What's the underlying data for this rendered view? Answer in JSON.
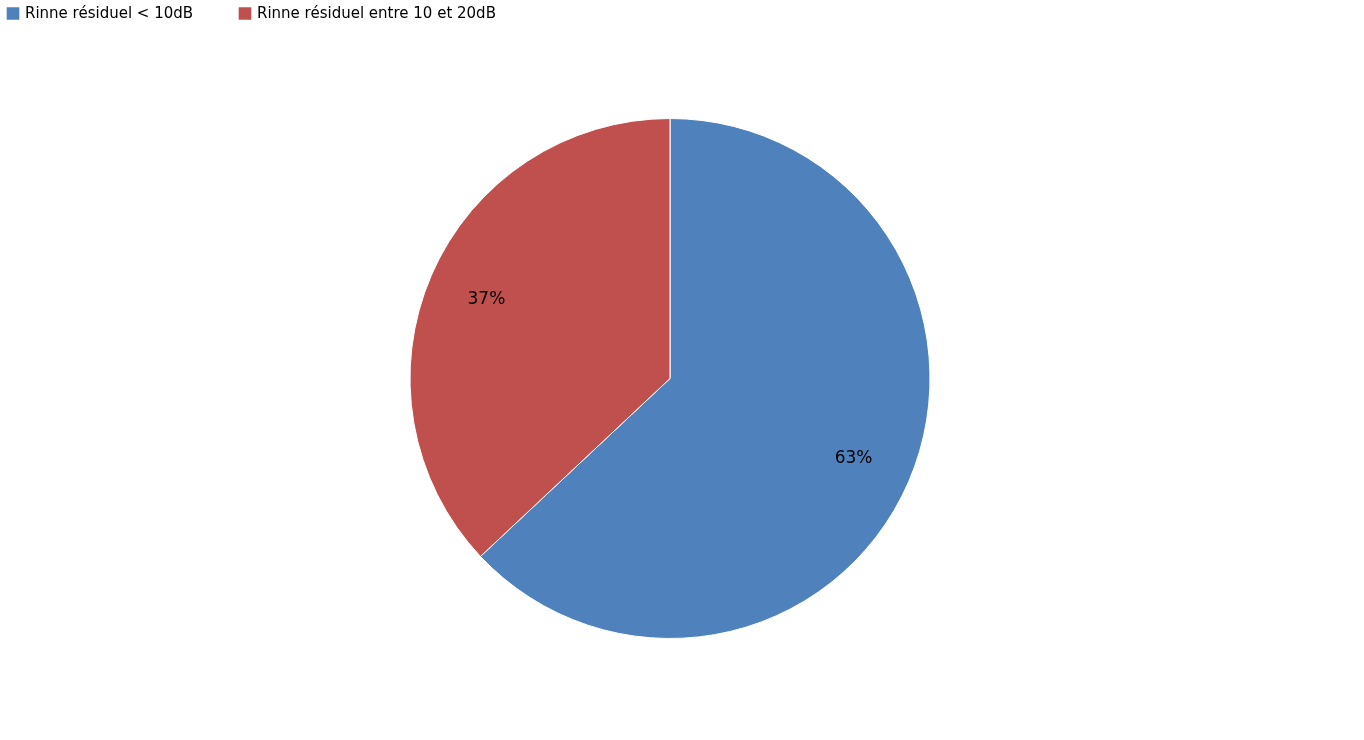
{
  "chart_data": {
    "type": "pie",
    "categories": [
      "Rinne résiduel < 10dB",
      "Rinne résiduel entre 10 et 20dB"
    ],
    "values": [
      63,
      37
    ],
    "colors": [
      "#4f81bd",
      "#c0504d"
    ],
    "value_labels": [
      "63%",
      "37%"
    ],
    "legend": "top"
  }
}
